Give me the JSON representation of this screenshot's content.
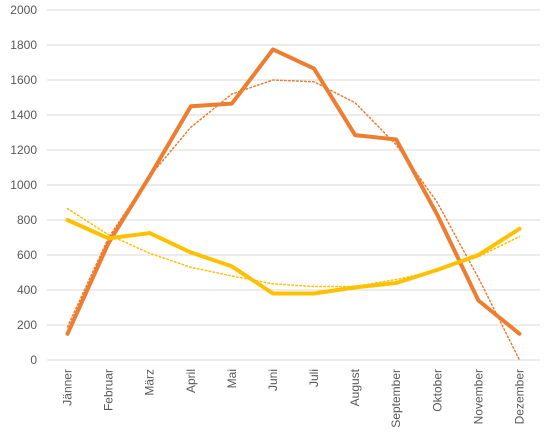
{
  "chart_data": {
    "type": "line",
    "title": "",
    "xlabel": "",
    "ylabel": "",
    "categories": [
      "Jänner",
      "Februar",
      "März",
      "April",
      "Mai",
      "Juni",
      "Juli",
      "August",
      "September",
      "Oktober",
      "November",
      "Dezember"
    ],
    "ylim": [
      0,
      2000
    ],
    "yticks": [
      0,
      200,
      400,
      600,
      800,
      1000,
      1200,
      1400,
      1600,
      1800,
      2000
    ],
    "grid": true,
    "legend": "none",
    "series": [
      {
        "color": "#ED7D31",
        "style": "solid",
        "values": [
          150,
          670,
          1050,
          1450,
          1465,
          1775,
          1665,
          1285,
          1260,
          830,
          340,
          150
        ]
      },
      {
        "color": "#FFC000",
        "style": "solid",
        "values": [
          800,
          695,
          725,
          615,
          535,
          380,
          380,
          415,
          440,
          515,
          600,
          750
        ]
      },
      {
        "color": "#ED7D31",
        "style": "dotted",
        "values": [
          190,
          700,
          1050,
          1330,
          1520,
          1600,
          1590,
          1470,
          1230,
          900,
          470,
          0
        ]
      },
      {
        "color": "#FFC000",
        "style": "dotted",
        "values": [
          865,
          715,
          610,
          530,
          480,
          435,
          420,
          420,
          460,
          510,
          590,
          705
        ]
      }
    ]
  }
}
